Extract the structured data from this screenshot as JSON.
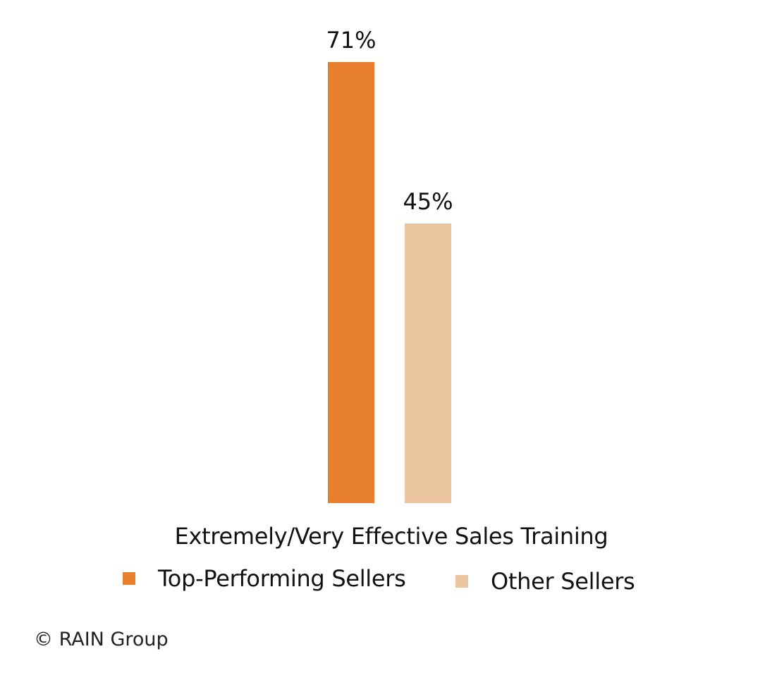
{
  "chart_data": {
    "type": "bar",
    "title": "",
    "categories": [
      "Extremely/Very Effective Sales Training"
    ],
    "series": [
      {
        "name": "Top-Performing Sellers",
        "values": [
          71
        ],
        "color": "#E77F2F",
        "label": "71%"
      },
      {
        "name": "Other Sellers",
        "values": [
          45
        ],
        "color": "#EBC4A0",
        "label": "45%"
      }
    ],
    "xlabel": "",
    "ylabel": "",
    "ylim": [
      0,
      100
    ],
    "grid": false,
    "legend_position": "bottom",
    "unit": "%"
  },
  "category_label": "Extremely/Very Effective Sales Training",
  "legend": [
    {
      "label": "Top-Performing Sellers",
      "color": "#E77F2F"
    },
    {
      "label": "Other Sellers",
      "color": "#EBC4A0"
    }
  ],
  "credit": "© RAIN Group"
}
